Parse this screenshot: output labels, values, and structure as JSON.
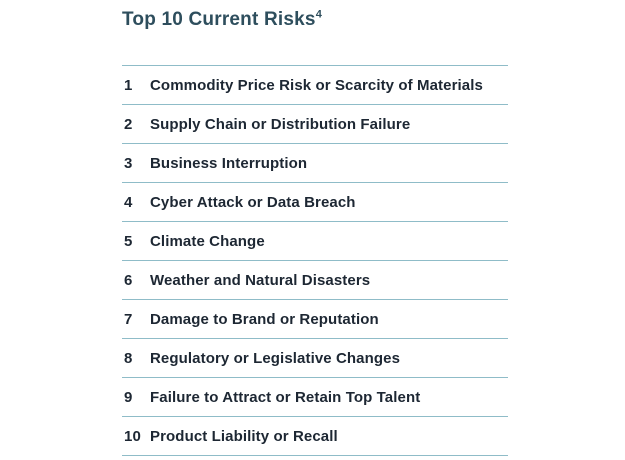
{
  "title": {
    "text": "Top 10 Current Risks",
    "footnote_marker": "4"
  },
  "colors": {
    "background": "#ffffff",
    "title_text": "#2e4e5d",
    "row_text": "#1d2733",
    "divider": "#8fbcc8"
  },
  "chart_data": {
    "type": "table",
    "title": "Top 10 Current Risks",
    "footnote_marker": "4",
    "columns": [
      "rank",
      "risk"
    ],
    "rows": [
      {
        "rank": "1",
        "risk": "Commodity Price Risk or Scarcity of Materials"
      },
      {
        "rank": "2",
        "risk": "Supply Chain or Distribution Failure"
      },
      {
        "rank": "3",
        "risk": "Business Interruption"
      },
      {
        "rank": "4",
        "risk": "Cyber Attack or Data Breach"
      },
      {
        "rank": "5",
        "risk": "Climate Change"
      },
      {
        "rank": "6",
        "risk": "Weather and Natural Disasters"
      },
      {
        "rank": "7",
        "risk": "Damage to Brand or Reputation"
      },
      {
        "rank": "8",
        "risk": "Regulatory or Legislative Changes"
      },
      {
        "rank": "9",
        "risk": "Failure to Attract or Retain Top Talent"
      },
      {
        "rank": "10",
        "risk": "Product Liability or Recall"
      }
    ]
  }
}
